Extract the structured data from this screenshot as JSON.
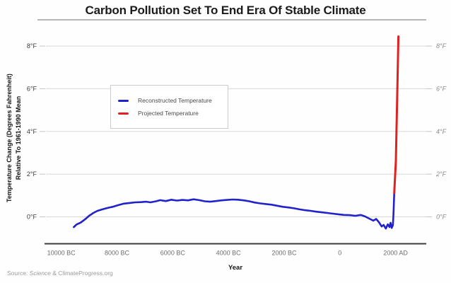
{
  "colors": {
    "grid": "#d8d8d8",
    "tick": "#c4c4c4",
    "axis": "#3c3c3c",
    "blue": "#2222cd",
    "red": "#de2222",
    "background": "#ffffff"
  },
  "source": {
    "prefix": "Source: ",
    "italic_word": "Science",
    "suffix": " & ClimateProgress.org"
  },
  "chart_data": {
    "type": "line",
    "title": "Carbon Pollution Set To End Era Of Stable Climate",
    "xlabel": "Year",
    "ylabel_line1": "Temperature Change (Degrees Fahrenheit)",
    "ylabel_line2": "Relative To 1961-1990 Mean",
    "xlim": [
      -10600,
      3100
    ],
    "ylim": [
      -1.26,
      8.5
    ],
    "grid": true,
    "x_ticks": [
      {
        "value": -10000,
        "label": "10000 BC"
      },
      {
        "value": -8000,
        "label": "8000 BC"
      },
      {
        "value": -6000,
        "label": "6000 BC"
      },
      {
        "value": -4000,
        "label": "4000 BC"
      },
      {
        "value": -2000,
        "label": "2000 BC"
      },
      {
        "value": 0,
        "label": "0"
      },
      {
        "value": 2000,
        "label": "2000 AD"
      }
    ],
    "y_ticks": [
      {
        "value": 0,
        "label": "0°F"
      },
      {
        "value": 2,
        "label": "2°F"
      },
      {
        "value": 4,
        "label": "4°F"
      },
      {
        "value": 6,
        "label": "6°F"
      },
      {
        "value": 8,
        "label": "8°F"
      }
    ],
    "legend": {
      "position": "upper-left",
      "entries": [
        {
          "label": "Reconstructed Temperature",
          "color": "#2222cd"
        },
        {
          "label": "Projected Temperature",
          "color": "#de2222"
        }
      ]
    },
    "series": [
      {
        "id": "reconstructed",
        "name": "Reconstructed Temperature",
        "color": "#2222cd",
        "width": 2.6,
        "points": [
          [
            -9550,
            -0.48
          ],
          [
            -9450,
            -0.36
          ],
          [
            -9300,
            -0.27
          ],
          [
            -9150,
            -0.12
          ],
          [
            -9000,
            0.05
          ],
          [
            -8850,
            0.18
          ],
          [
            -8700,
            0.28
          ],
          [
            -8500,
            0.36
          ],
          [
            -8300,
            0.43
          ],
          [
            -8150,
            0.47
          ],
          [
            -7950,
            0.55
          ],
          [
            -7750,
            0.62
          ],
          [
            -7550,
            0.65
          ],
          [
            -7350,
            0.68
          ],
          [
            -7150,
            0.69
          ],
          [
            -6950,
            0.71
          ],
          [
            -6800,
            0.68
          ],
          [
            -6600,
            0.73
          ],
          [
            -6450,
            0.78
          ],
          [
            -6250,
            0.74
          ],
          [
            -6050,
            0.8
          ],
          [
            -5850,
            0.76
          ],
          [
            -5650,
            0.79
          ],
          [
            -5450,
            0.77
          ],
          [
            -5250,
            0.82
          ],
          [
            -5050,
            0.78
          ],
          [
            -4850,
            0.73
          ],
          [
            -4650,
            0.71
          ],
          [
            -4450,
            0.74
          ],
          [
            -4250,
            0.77
          ],
          [
            -4050,
            0.79
          ],
          [
            -3850,
            0.81
          ],
          [
            -3650,
            0.8
          ],
          [
            -3450,
            0.77
          ],
          [
            -3250,
            0.73
          ],
          [
            -3050,
            0.67
          ],
          [
            -2850,
            0.63
          ],
          [
            -2650,
            0.6
          ],
          [
            -2450,
            0.57
          ],
          [
            -2250,
            0.52
          ],
          [
            -2050,
            0.47
          ],
          [
            -1850,
            0.44
          ],
          [
            -1650,
            0.4
          ],
          [
            -1450,
            0.35
          ],
          [
            -1250,
            0.31
          ],
          [
            -1050,
            0.28
          ],
          [
            -850,
            0.24
          ],
          [
            -650,
            0.21
          ],
          [
            -450,
            0.18
          ],
          [
            -250,
            0.15
          ],
          [
            -50,
            0.12
          ],
          [
            150,
            0.09
          ],
          [
            350,
            0.08
          ],
          [
            550,
            0.05
          ],
          [
            750,
            0.09
          ],
          [
            900,
            0.02
          ],
          [
            1050,
            -0.08
          ],
          [
            1200,
            -0.18
          ],
          [
            1300,
            -0.1
          ],
          [
            1400,
            -0.25
          ],
          [
            1500,
            -0.45
          ],
          [
            1570,
            -0.38
          ],
          [
            1650,
            -0.55
          ],
          [
            1720,
            -0.35
          ],
          [
            1780,
            -0.48
          ],
          [
            1820,
            -0.28
          ],
          [
            1860,
            -0.52
          ],
          [
            1900,
            -0.4
          ],
          [
            1915,
            -0.1
          ],
          [
            1930,
            0.35
          ],
          [
            1940,
            0.75
          ],
          [
            1950,
            1.12
          ]
        ]
      },
      {
        "id": "projected",
        "name": "Projected Temperature",
        "color": "#de2222",
        "width": 3,
        "points": [
          [
            1950,
            1.12
          ],
          [
            2010,
            2.6
          ],
          [
            2060,
            5.8
          ],
          [
            2100,
            8.45
          ]
        ]
      }
    ]
  }
}
